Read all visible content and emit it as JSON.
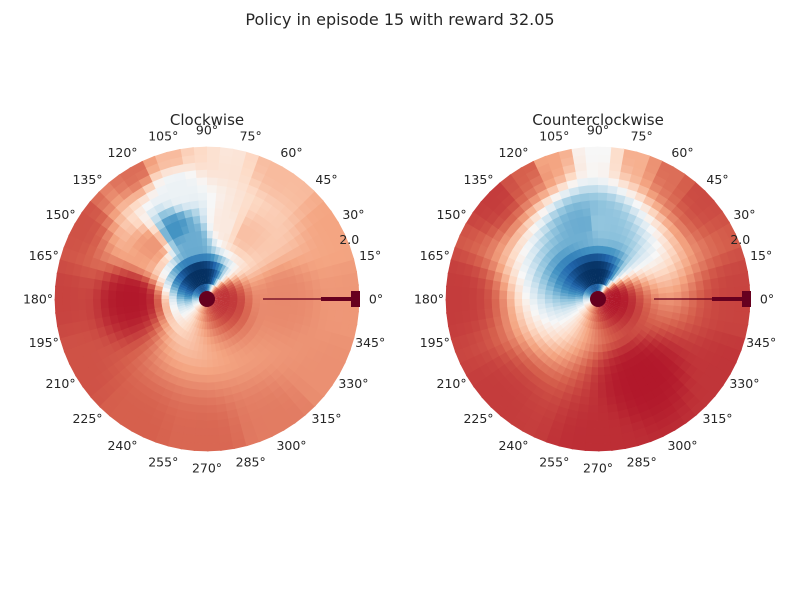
{
  "chart_data": {
    "type": "heatmap",
    "title": "Policy in episode 15 with reward 32.05",
    "colormap": "RdBu_r",
    "colormap_stops": [
      "#053061",
      "#2166ac",
      "#4393c3",
      "#92c5de",
      "#d1e5f0",
      "#f7f7f7",
      "#fddbc7",
      "#f4a582",
      "#d6604d",
      "#b2182b",
      "#67001f"
    ],
    "marker_color": "#67001f",
    "angle_ticks": [
      "0°",
      "15°",
      "30°",
      "45°",
      "60°",
      "75°",
      "90°",
      "105°",
      "120°",
      "135°",
      "150°",
      "165°",
      "180°",
      "195°",
      "210°",
      "225°",
      "240°",
      "255°",
      "270°",
      "285°",
      "300°",
      "315°",
      "330°",
      "345°"
    ],
    "radial_tick": "2.0",
    "rlim": [
      0,
      2.0
    ],
    "grid": false,
    "subplots": [
      {
        "title": "Clockwise",
        "value_range": [
          0,
          1
        ],
        "samples": [
          {
            "theta_deg": 0,
            "r": 2.0,
            "v": 0.72
          },
          {
            "theta_deg": 0,
            "r": 1.0,
            "v": 0.74
          },
          {
            "theta_deg": 0,
            "r": 0.2,
            "v": 0.86
          },
          {
            "theta_deg": 30,
            "r": 2.0,
            "v": 0.7
          },
          {
            "theta_deg": 60,
            "r": 2.0,
            "v": 0.66
          },
          {
            "theta_deg": 60,
            "r": 1.0,
            "v": 0.65
          },
          {
            "theta_deg": 75,
            "r": 1.0,
            "v": 0.55
          },
          {
            "theta_deg": 85,
            "r": 2.0,
            "v": 0.56
          },
          {
            "theta_deg": 90,
            "r": 2.0,
            "v": 0.6
          },
          {
            "theta_deg": 105,
            "r": 2.0,
            "v": 0.66
          },
          {
            "theta_deg": 105,
            "r": 1.5,
            "v": 0.47
          },
          {
            "theta_deg": 105,
            "r": 0.8,
            "v": 0.25
          },
          {
            "theta_deg": 105,
            "r": 0.3,
            "v": 0.0
          },
          {
            "theta_deg": 115,
            "r": 1.0,
            "v": 0.2
          },
          {
            "theta_deg": 120,
            "r": 2.0,
            "v": 0.78
          },
          {
            "theta_deg": 135,
            "r": 1.0,
            "v": 0.72
          },
          {
            "theta_deg": 150,
            "r": 2.0,
            "v": 0.82
          },
          {
            "theta_deg": 180,
            "r": 2.0,
            "v": 0.84
          },
          {
            "theta_deg": 180,
            "r": 1.0,
            "v": 0.9
          },
          {
            "theta_deg": 210,
            "r": 2.0,
            "v": 0.82
          },
          {
            "theta_deg": 240,
            "r": 2.0,
            "v": 0.8
          },
          {
            "theta_deg": 270,
            "r": 2.0,
            "v": 0.79
          },
          {
            "theta_deg": 300,
            "r": 2.0,
            "v": 0.76
          },
          {
            "theta_deg": 330,
            "r": 2.0,
            "v": 0.73
          }
        ]
      },
      {
        "title": "Counterclockwise",
        "value_range": [
          0,
          1
        ],
        "samples": [
          {
            "theta_deg": 0,
            "r": 2.0,
            "v": 0.84
          },
          {
            "theta_deg": 0,
            "r": 0.2,
            "v": 0.9
          },
          {
            "theta_deg": 45,
            "r": 2.0,
            "v": 0.83
          },
          {
            "theta_deg": 60,
            "r": 2.0,
            "v": 0.78
          },
          {
            "theta_deg": 75,
            "r": 2.0,
            "v": 0.68
          },
          {
            "theta_deg": 90,
            "r": 2.0,
            "v": 0.5
          },
          {
            "theta_deg": 90,
            "r": 1.0,
            "v": 0.3
          },
          {
            "theta_deg": 95,
            "r": 0.3,
            "v": 0.0
          },
          {
            "theta_deg": 100,
            "r": 1.0,
            "v": 0.25
          },
          {
            "theta_deg": 110,
            "r": 2.0,
            "v": 0.7
          },
          {
            "theta_deg": 120,
            "r": 2.0,
            "v": 0.8
          },
          {
            "theta_deg": 135,
            "r": 2.0,
            "v": 0.85
          },
          {
            "theta_deg": 180,
            "r": 2.0,
            "v": 0.85
          },
          {
            "theta_deg": 225,
            "r": 2.0,
            "v": 0.85
          },
          {
            "theta_deg": 270,
            "r": 2.0,
            "v": 0.87
          },
          {
            "theta_deg": 300,
            "r": 1.2,
            "v": 0.9
          },
          {
            "theta_deg": 330,
            "r": 2.0,
            "v": 0.86
          }
        ]
      }
    ]
  }
}
